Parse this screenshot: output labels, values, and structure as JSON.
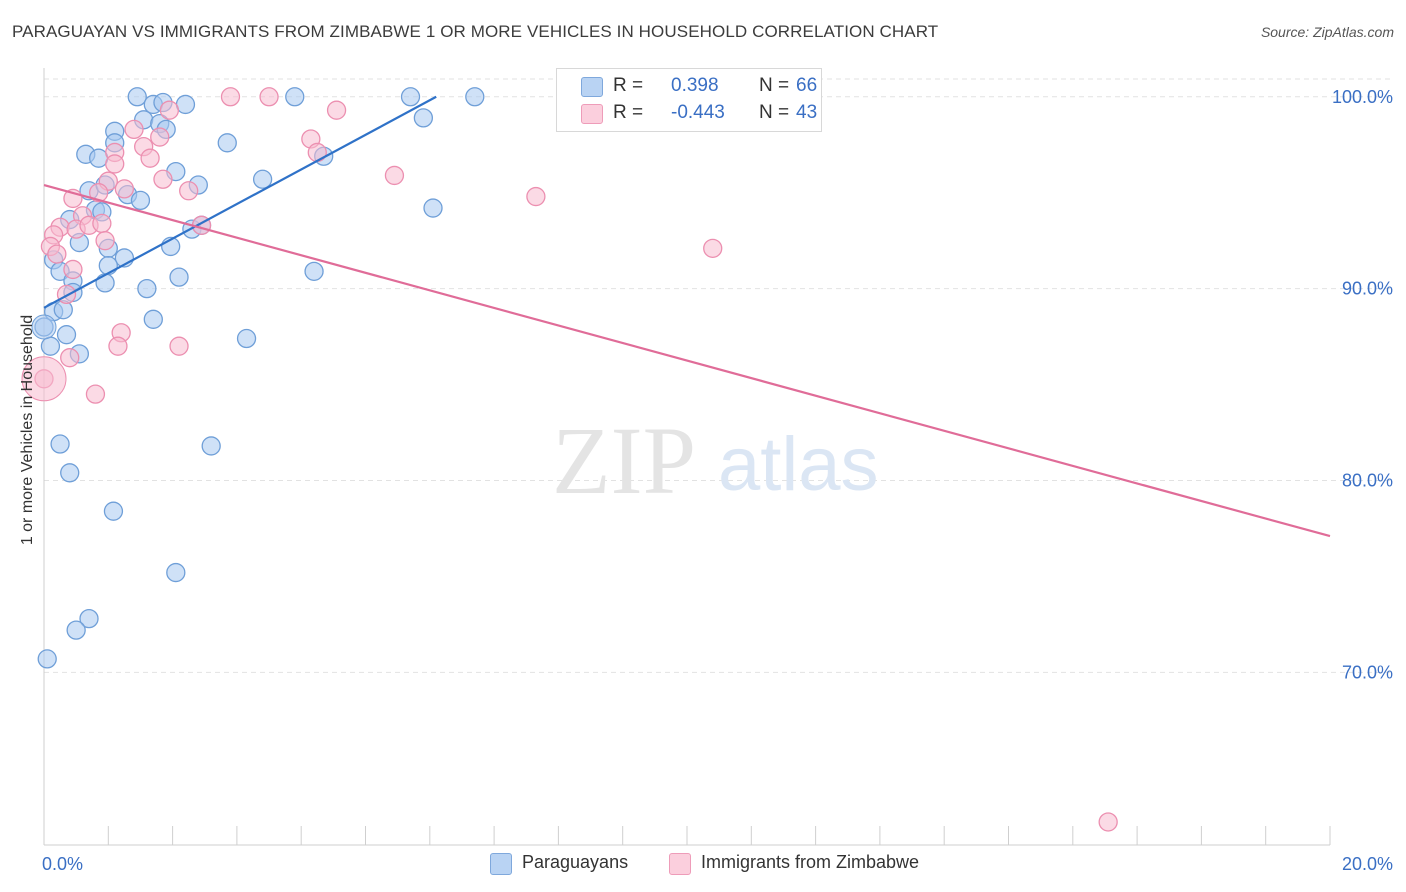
{
  "title": "PARAGUAYAN VS IMMIGRANTS FROM ZIMBABWE 1 OR MORE VEHICLES IN HOUSEHOLD CORRELATION CHART",
  "source": "Source: ZipAtlas.com",
  "watermark": {
    "zip": "ZIP",
    "atlas": "atlas"
  },
  "legend": {
    "rows": [
      {
        "r_label": "R =",
        "r_value": "0.398",
        "n_label": "N =",
        "n_value": "66",
        "color": "#a8c8f0"
      },
      {
        "r_label": "R =",
        "r_value": "-0.443",
        "n_label": "N =",
        "n_value": "43",
        "color": "#f8bcd0"
      }
    ]
  },
  "bottom_legend": [
    "Paraguayans",
    "Immigrants from Zimbabwe"
  ],
  "colors": {
    "blue_fill": "#a8c8f0",
    "blue_stroke": "#6f9fd8",
    "blue_line": "#2f72c8",
    "pink_fill": "#f8bcd0",
    "pink_stroke": "#ec8fb0",
    "pink_line": "#e06c98",
    "tick_text": "#3a6fc4",
    "grid": "#e2e2e2"
  },
  "chart_data": {
    "type": "scatter",
    "title": "PARAGUAYAN VS IMMIGRANTS FROM ZIMBABWE 1 OR MORE VEHICLES IN HOUSEHOLD CORRELATION CHART",
    "xlabel": "",
    "ylabel": "1 or more Vehicles in Household",
    "xlim": [
      0,
      20
    ],
    "ylim": [
      61,
      101.5
    ],
    "x_tick_labels": [
      "0.0%",
      "20.0%"
    ],
    "y_ticks": [
      70,
      80,
      90,
      100
    ],
    "y_tick_labels": [
      "70.0%",
      "80.0%",
      "90.0%",
      "100.0%"
    ],
    "grid": true,
    "legend_position": "top-center",
    "series": [
      {
        "name": "Paraguayans",
        "r": 0.398,
        "n": 66,
        "trend": [
          [
            0,
            89.0
          ],
          [
            6.1,
            100.0
          ]
        ],
        "points": [
          [
            1.45,
            100.0
          ],
          [
            1.7,
            99.6
          ],
          [
            1.85,
            99.7
          ],
          [
            2.2,
            99.6
          ],
          [
            3.9,
            100.0
          ],
          [
            5.7,
            100.0
          ],
          [
            6.7,
            100.0
          ],
          [
            1.55,
            98.8
          ],
          [
            1.8,
            98.6
          ],
          [
            1.9,
            98.3
          ],
          [
            5.9,
            98.9
          ],
          [
            1.1,
            98.2
          ],
          [
            1.1,
            97.6
          ],
          [
            2.85,
            97.6
          ],
          [
            0.65,
            97.0
          ],
          [
            0.85,
            96.8
          ],
          [
            4.35,
            96.9
          ],
          [
            2.05,
            96.1
          ],
          [
            3.4,
            95.7
          ],
          [
            2.4,
            95.4
          ],
          [
            0.7,
            95.1
          ],
          [
            0.95,
            95.4
          ],
          [
            1.3,
            94.9
          ],
          [
            1.5,
            94.6
          ],
          [
            0.8,
            94.1
          ],
          [
            6.05,
            94.2
          ],
          [
            0.4,
            93.6
          ],
          [
            0.9,
            94.0
          ],
          [
            2.3,
            93.1
          ],
          [
            2.45,
            93.3
          ],
          [
            0.55,
            92.4
          ],
          [
            1.0,
            92.1
          ],
          [
            1.25,
            91.6
          ],
          [
            1.97,
            92.2
          ],
          [
            1.0,
            91.2
          ],
          [
            0.15,
            91.5
          ],
          [
            0.25,
            90.9
          ],
          [
            0.45,
            90.4
          ],
          [
            0.95,
            90.3
          ],
          [
            2.1,
            90.6
          ],
          [
            4.2,
            90.9
          ],
          [
            1.6,
            90.0
          ],
          [
            0.45,
            89.8
          ],
          [
            0.15,
            88.8
          ],
          [
            0.3,
            88.9
          ],
          [
            1.7,
            88.4
          ],
          [
            0.0,
            88.0
          ],
          [
            0.35,
            87.6
          ],
          [
            3.15,
            87.4
          ],
          [
            0.1,
            87.0
          ],
          [
            0.55,
            86.6
          ],
          [
            0.25,
            81.9
          ],
          [
            0.4,
            80.4
          ],
          [
            2.6,
            81.8
          ],
          [
            1.08,
            78.4
          ],
          [
            2.05,
            75.2
          ],
          [
            0.7,
            72.8
          ],
          [
            0.5,
            72.2
          ],
          [
            0.05,
            70.7
          ]
        ]
      },
      {
        "name": "Immigrants from Zimbabwe",
        "r": -0.443,
        "n": 43,
        "trend": [
          [
            0,
            95.4
          ],
          [
            20,
            77.1
          ]
        ],
        "points": [
          [
            2.9,
            100.0
          ],
          [
            3.5,
            100.0
          ],
          [
            1.95,
            99.3
          ],
          [
            4.55,
            99.3
          ],
          [
            1.4,
            98.3
          ],
          [
            1.8,
            97.9
          ],
          [
            4.15,
            97.8
          ],
          [
            1.55,
            97.4
          ],
          [
            1.1,
            97.1
          ],
          [
            4.25,
            97.1
          ],
          [
            1.65,
            96.8
          ],
          [
            1.1,
            96.5
          ],
          [
            5.45,
            95.9
          ],
          [
            1.85,
            95.7
          ],
          [
            2.25,
            95.1
          ],
          [
            1.0,
            95.6
          ],
          [
            0.85,
            95.0
          ],
          [
            1.25,
            95.2
          ],
          [
            0.45,
            94.7
          ],
          [
            7.65,
            94.8
          ],
          [
            0.6,
            93.8
          ],
          [
            0.25,
            93.2
          ],
          [
            0.5,
            93.1
          ],
          [
            0.7,
            93.3
          ],
          [
            0.9,
            93.4
          ],
          [
            0.95,
            92.5
          ],
          [
            0.15,
            92.8
          ],
          [
            0.1,
            92.2
          ],
          [
            2.45,
            93.3
          ],
          [
            10.4,
            92.1
          ],
          [
            0.2,
            91.8
          ],
          [
            0.45,
            91.0
          ],
          [
            0.35,
            89.7
          ],
          [
            1.2,
            87.7
          ],
          [
            1.15,
            87.0
          ],
          [
            2.1,
            87.0
          ],
          [
            0.4,
            86.4
          ],
          [
            0.0,
            85.3
          ],
          [
            0.8,
            84.5
          ],
          [
            16.55,
            62.2
          ]
        ]
      }
    ]
  }
}
